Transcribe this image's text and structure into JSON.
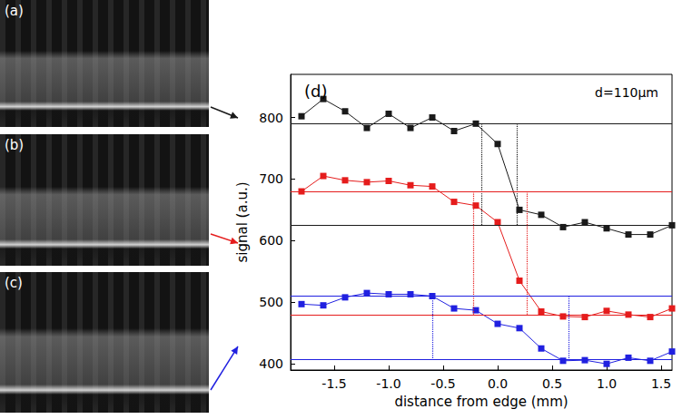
{
  "chart_data": {
    "type": "line",
    "title": "(d)",
    "annotations": [
      "d=110μm"
    ],
    "xlabel": "distance from edge (mm)",
    "ylabel": "signal (a.u.)",
    "x": [
      -1.8,
      -1.6,
      -1.4,
      -1.2,
      -1.0,
      -0.8,
      -0.6,
      -0.4,
      -0.2,
      0.0,
      0.2,
      0.4,
      0.6,
      0.8,
      1.0,
      1.2,
      1.4,
      1.6
    ],
    "series": [
      {
        "color": "#1a1a1a",
        "values": [
          802,
          830,
          810,
          783,
          806,
          783,
          800,
          778,
          790,
          757,
          650,
          642,
          622,
          630,
          620,
          610,
          610,
          625
        ],
        "levels": [
          790,
          625
        ],
        "edges": [
          -0.15,
          0.18
        ]
      },
      {
        "color": "#e51c1c",
        "values": [
          680,
          705,
          698,
          695,
          697,
          690,
          688,
          663,
          657,
          630,
          535,
          485,
          477,
          476,
          486,
          480,
          476,
          490
        ],
        "levels": [
          680,
          480
        ],
        "edges": [
          -0.22,
          0.27
        ]
      },
      {
        "color": "#2020e0",
        "values": [
          497,
          495,
          508,
          515,
          513,
          513,
          510,
          490,
          487,
          465,
          458,
          425,
          405,
          406,
          400,
          410,
          405,
          420
        ],
        "levels": [
          510,
          407
        ],
        "edges": [
          -0.6,
          0.65
        ]
      }
    ],
    "xlim": [
      -1.9,
      1.6
    ],
    "xticks": [
      -1.5,
      {
        "value": -1,
        "label": "-1.0"
      },
      -0.5,
      {
        "value": 0,
        "label": "0.0"
      },
      0.5,
      {
        "value": 1,
        "label": "1.0"
      },
      1.5
    ],
    "ylim": [
      390,
      870
    ],
    "yticks": [
      400,
      500,
      600,
      700,
      800
    ],
    "marker": "square",
    "line_style": "solid",
    "grid": false
  },
  "panels": [
    {
      "label": "(a)"
    },
    {
      "label": "(b)"
    },
    {
      "label": "(c)"
    }
  ]
}
